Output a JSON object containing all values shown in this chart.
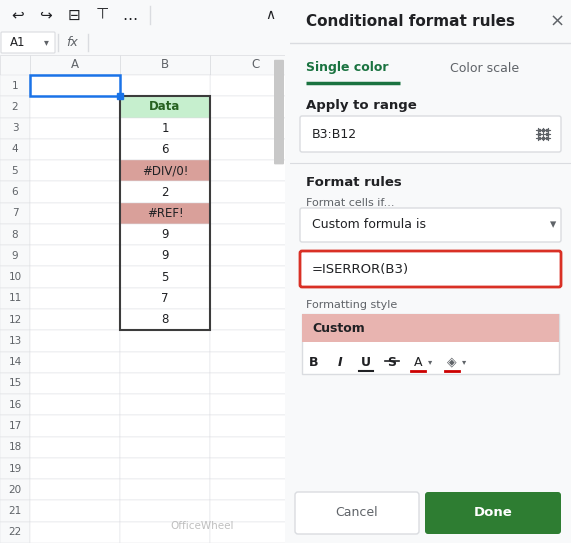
{
  "title": "Conditional format rules",
  "tab_single": "Single color",
  "tab_color_scale": "Color scale",
  "apply_to_range_label": "Apply to range",
  "range_value": "B3:B12",
  "format_rules_label": "Format rules",
  "format_cells_if_label": "Format cells if...",
  "dropdown_value": "Custom formula is",
  "formula": "=ISERROR(B3)",
  "formatting_style_label": "Formatting style",
  "custom_label": "Custom",
  "cancel_btn": "Cancel",
  "done_btn": "Done",
  "cell_ref": "A1",
  "col_headers": [
    "A",
    "B",
    "C"
  ],
  "row_data": [
    {
      "row": 1,
      "val": "",
      "bg": "#ffffff",
      "bold": false,
      "error": false
    },
    {
      "row": 2,
      "val": "Data",
      "bg": "#c6efce",
      "bold": true,
      "error": false
    },
    {
      "row": 3,
      "val": "1",
      "bg": "#ffffff",
      "bold": false,
      "error": false
    },
    {
      "row": 4,
      "val": "6",
      "bg": "#ffffff",
      "bold": false,
      "error": false
    },
    {
      "row": 5,
      "val": "#DIV/0!",
      "bg": "#d9a09a",
      "bold": false,
      "error": true
    },
    {
      "row": 6,
      "val": "2",
      "bg": "#ffffff",
      "bold": false,
      "error": false
    },
    {
      "row": 7,
      "val": "#REF!",
      "bg": "#d9a09a",
      "bold": false,
      "error": true
    },
    {
      "row": 8,
      "val": "9",
      "bg": "#ffffff",
      "bold": false,
      "error": false
    },
    {
      "row": 9,
      "val": "9",
      "bg": "#ffffff",
      "bold": false,
      "error": false
    },
    {
      "row": 10,
      "val": "5",
      "bg": "#ffffff",
      "bold": false,
      "error": false
    },
    {
      "row": 11,
      "val": "7",
      "bg": "#ffffff",
      "bold": false,
      "error": false
    },
    {
      "row": 12,
      "val": "8",
      "bg": "#ffffff",
      "bold": false,
      "error": false
    }
  ],
  "bg_main": "#f8f9fa",
  "bg_panel": "#ffffff",
  "bg_sheet": "#ffffff",
  "green_accent": "#1a7340",
  "green_btn": "#2e7d32",
  "text_dark": "#202124",
  "text_gray": "#5f6368",
  "border_color": "#dadce0",
  "formula_border": "#d93025",
  "formatting_style_bg": "#e8b4b0",
  "scrollbar_color": "#c8c8c8",
  "sheet_row_header_bg": "#f8f9fa",
  "sheet_col_header_bg": "#f8f9fa",
  "selected_cell_border": "#1a73e8",
  "header_bg_green": "#c6efce",
  "header_text_green": "#276221"
}
